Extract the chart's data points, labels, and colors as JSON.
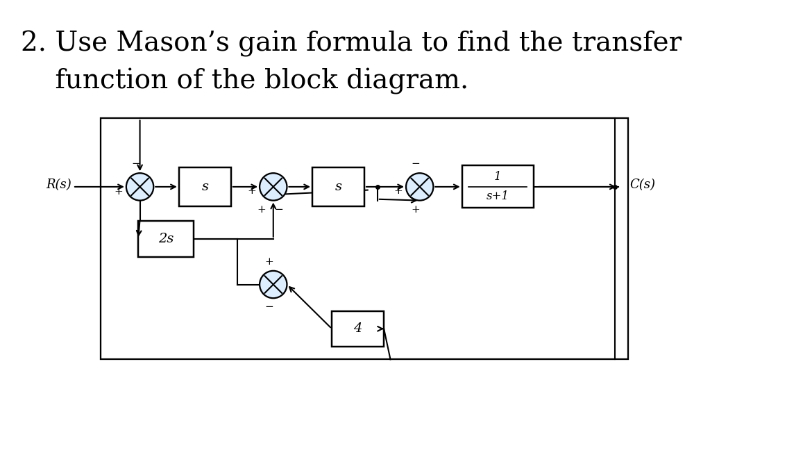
{
  "title_line1": "2. Use Mason’s gain formula to find the transfer",
  "title_line2": "    function of the block diagram.",
  "title_fontsize": 28,
  "bg_color": "#ffffff",
  "text_color": "#000000",
  "block_facecolor": "#ffffff",
  "block_edgecolor": "#000000",
  "sumjunc_facecolor": "#ddeeff",
  "sumjunc_edgecolor": "#000000",
  "label_Rs": "R(s)",
  "label_Cs": "C(s)",
  "label_b1": "s",
  "label_b2": "s",
  "label_b3_num": "1",
  "label_b3_den": "s+1",
  "label_b4": "2s",
  "label_b5": "4",
  "lw": 1.5
}
